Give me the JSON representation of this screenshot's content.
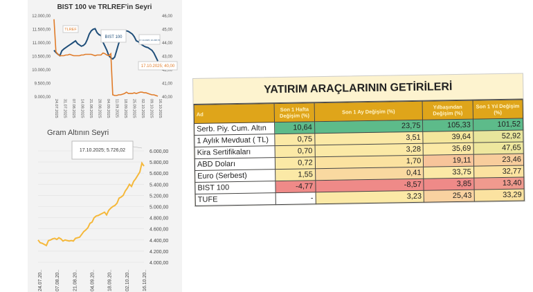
{
  "chart_data": [
    {
      "type": "line",
      "title": "BIST 100 ve TRLREF'in Seyri",
      "x_ticks": [
        "24.07.2025",
        "31.07.2025",
        "07.08.2025",
        "14.08.2025",
        "21.08.2025",
        "28.08.2025",
        "04.09.2025",
        "11.09.2025",
        "18.09.2025",
        "25.09.2025",
        "02.10.2025",
        "09.10.2025",
        "16.10.2025"
      ],
      "y_left_ticks": [
        "12.000,00",
        "11.500,00",
        "11.000,00",
        "10.500,00",
        "10.000,00",
        "9.500,00",
        "9.000,00"
      ],
      "y_right_ticks": [
        "46,00",
        "45,00",
        "44,00",
        "43,00",
        "42,00",
        "41,00",
        "40,00"
      ],
      "ylim_left": [
        9000,
        12000
      ],
      "ylim_right": [
        40,
        46
      ],
      "series": [
        {
          "name": "BIST 100",
          "axis": "left",
          "color": "#1f4e79",
          "values": [
            10700,
            10620,
            10550,
            10500,
            10680,
            10750,
            10800,
            10850,
            10900,
            10950,
            11000,
            11050,
            10950,
            10900,
            10850,
            10880,
            10950,
            11100,
            11300,
            11420,
            11480,
            11500,
            11350,
            11280,
            11250,
            11000,
            10850,
            10700,
            10500,
            10420,
            10380,
            10450,
            10700,
            10950,
            11150,
            11300,
            11380,
            11420,
            11400,
            11350,
            11300,
            11200,
            11050,
            11020,
            10950,
            10900,
            10850,
            10820,
            10800,
            10750,
            10700,
            10600,
            10450,
            10300
          ]
        },
        {
          "name": "TRLREF",
          "axis": "right",
          "color": "#e07b28",
          "values": [
            45.7,
            43.3,
            43.1,
            43.0,
            43.0,
            43.0,
            43.05,
            43.05,
            43.1,
            43.05,
            43.0,
            43.0,
            43.0,
            43.0,
            43.05,
            43.05,
            43.1,
            43.1,
            43.1,
            43.1,
            43.05,
            43.0,
            43.05,
            43.05,
            43.05,
            43.2,
            43.15,
            43.05,
            43.0,
            43.15,
            40.1,
            40.05,
            40.05,
            40.1,
            40.1,
            40.15,
            40.2,
            40.3,
            40.2,
            40.2,
            40.2,
            40.25,
            40.2,
            40.25,
            40.3,
            40.3,
            40.25,
            40.25,
            40.2,
            40.15,
            40.1,
            40.1,
            40.05,
            40.0
          ]
        }
      ],
      "annotations": [
        "TLREF",
        "BIST 100",
        "17.10.2025; 10.238,76",
        "17.10.2025; 40,00"
      ]
    },
    {
      "type": "line",
      "title": "Gram Altının Seyri",
      "x_ticks": [
        "24.07.20..",
        "07.08.20..",
        "21.08.20..",
        "04.09.20..",
        "18.09.20..",
        "02.10.20..",
        "16.10.20.."
      ],
      "y_ticks": [
        "6.000,00",
        "5.800,00",
        "5.600,00",
        "5.400,00",
        "5.200,00",
        "5.000,00",
        "4.800,00",
        "4.600,00",
        "4.400,00",
        "4.200,00",
        "4.000,00"
      ],
      "ylim": [
        4000,
        6000
      ],
      "series": [
        {
          "name": "Gram Altın",
          "color": "#f5b83a",
          "values": [
            4400,
            4350,
            4340,
            4320,
            4300,
            4390,
            4400,
            4420,
            4430,
            4410,
            4440,
            4420,
            4380,
            4400,
            4390,
            4380,
            4390,
            4380,
            4430,
            4440,
            4450,
            4500,
            4550,
            4580,
            4620,
            4700,
            4720,
            4800,
            4830,
            4840,
            4860,
            4880,
            4900,
            4850,
            4930,
            4970,
            5000,
            5020,
            5060,
            5150,
            5170,
            5200,
            5280,
            5330,
            5400,
            5360,
            5450,
            5500,
            5560,
            5620,
            5780,
            5726
          ]
        }
      ],
      "annotations": [
        "17.10.2025; 5.726,02"
      ]
    }
  ],
  "table": {
    "title": "YATIRIM ARAÇLARININ GETİRİLERİ",
    "headers": [
      "Ad",
      "Son 1 Hafta Değişim (%)",
      "Son 1 Ay Değişim (%)",
      "Yılbaşından Değişim (%)",
      "Son 1 Yıl Değişim (%)"
    ],
    "rows": [
      {
        "name": "Serb. Piy. Cum. Altın",
        "values": [
          "10,64",
          "23,75",
          "105,33",
          "101,52"
        ],
        "colors": [
          "#5dbb8a",
          "#5dbb8a",
          "#5dbb8a",
          "#5dbb8a"
        ]
      },
      {
        "name": "1 Aylık Mevduat ( TL)",
        "values": [
          "0,75",
          "3,51",
          "39,64",
          "52,92"
        ],
        "colors": [
          "#fbe9a6",
          "#fbe9a6",
          "#f4e69c",
          "#e8e59c"
        ]
      },
      {
        "name": "Kira Sertifikaları",
        "values": [
          "0,70",
          "3,28",
          "35,69",
          "47,65"
        ],
        "colors": [
          "#fbe9a6",
          "#fbe9a6",
          "#fbe9a6",
          "#eee79e"
        ]
      },
      {
        "name": "ABD Doları",
        "values": [
          "0,72",
          "1,70",
          "19,11",
          "23,46"
        ],
        "colors": [
          "#fbe9a6",
          "#fbe2a0",
          "#f7c49a",
          "#f8cd9c"
        ]
      },
      {
        "name": "Euro (Serbest)",
        "values": [
          "1,55",
          "0,41",
          "33,75",
          "32,77"
        ],
        "colors": [
          "#fbe9a6",
          "#f9d9a0",
          "#fbe9a6",
          "#fbe2a0"
        ]
      },
      {
        "name": "BIST 100",
        "values": [
          "-4,77",
          "-8,57",
          "3,85",
          "13,40"
        ],
        "colors": [
          "#ef8a88",
          "#ef8a88",
          "#ef8a88",
          "#f09a8e"
        ]
      },
      {
        "name": "TUFE",
        "values": [
          "-",
          "3,23",
          "25,43",
          "33,29"
        ],
        "colors": [
          "#ffffff",
          "#fbe9a6",
          "#f9d2a0",
          "#fbe2a0"
        ]
      }
    ]
  }
}
